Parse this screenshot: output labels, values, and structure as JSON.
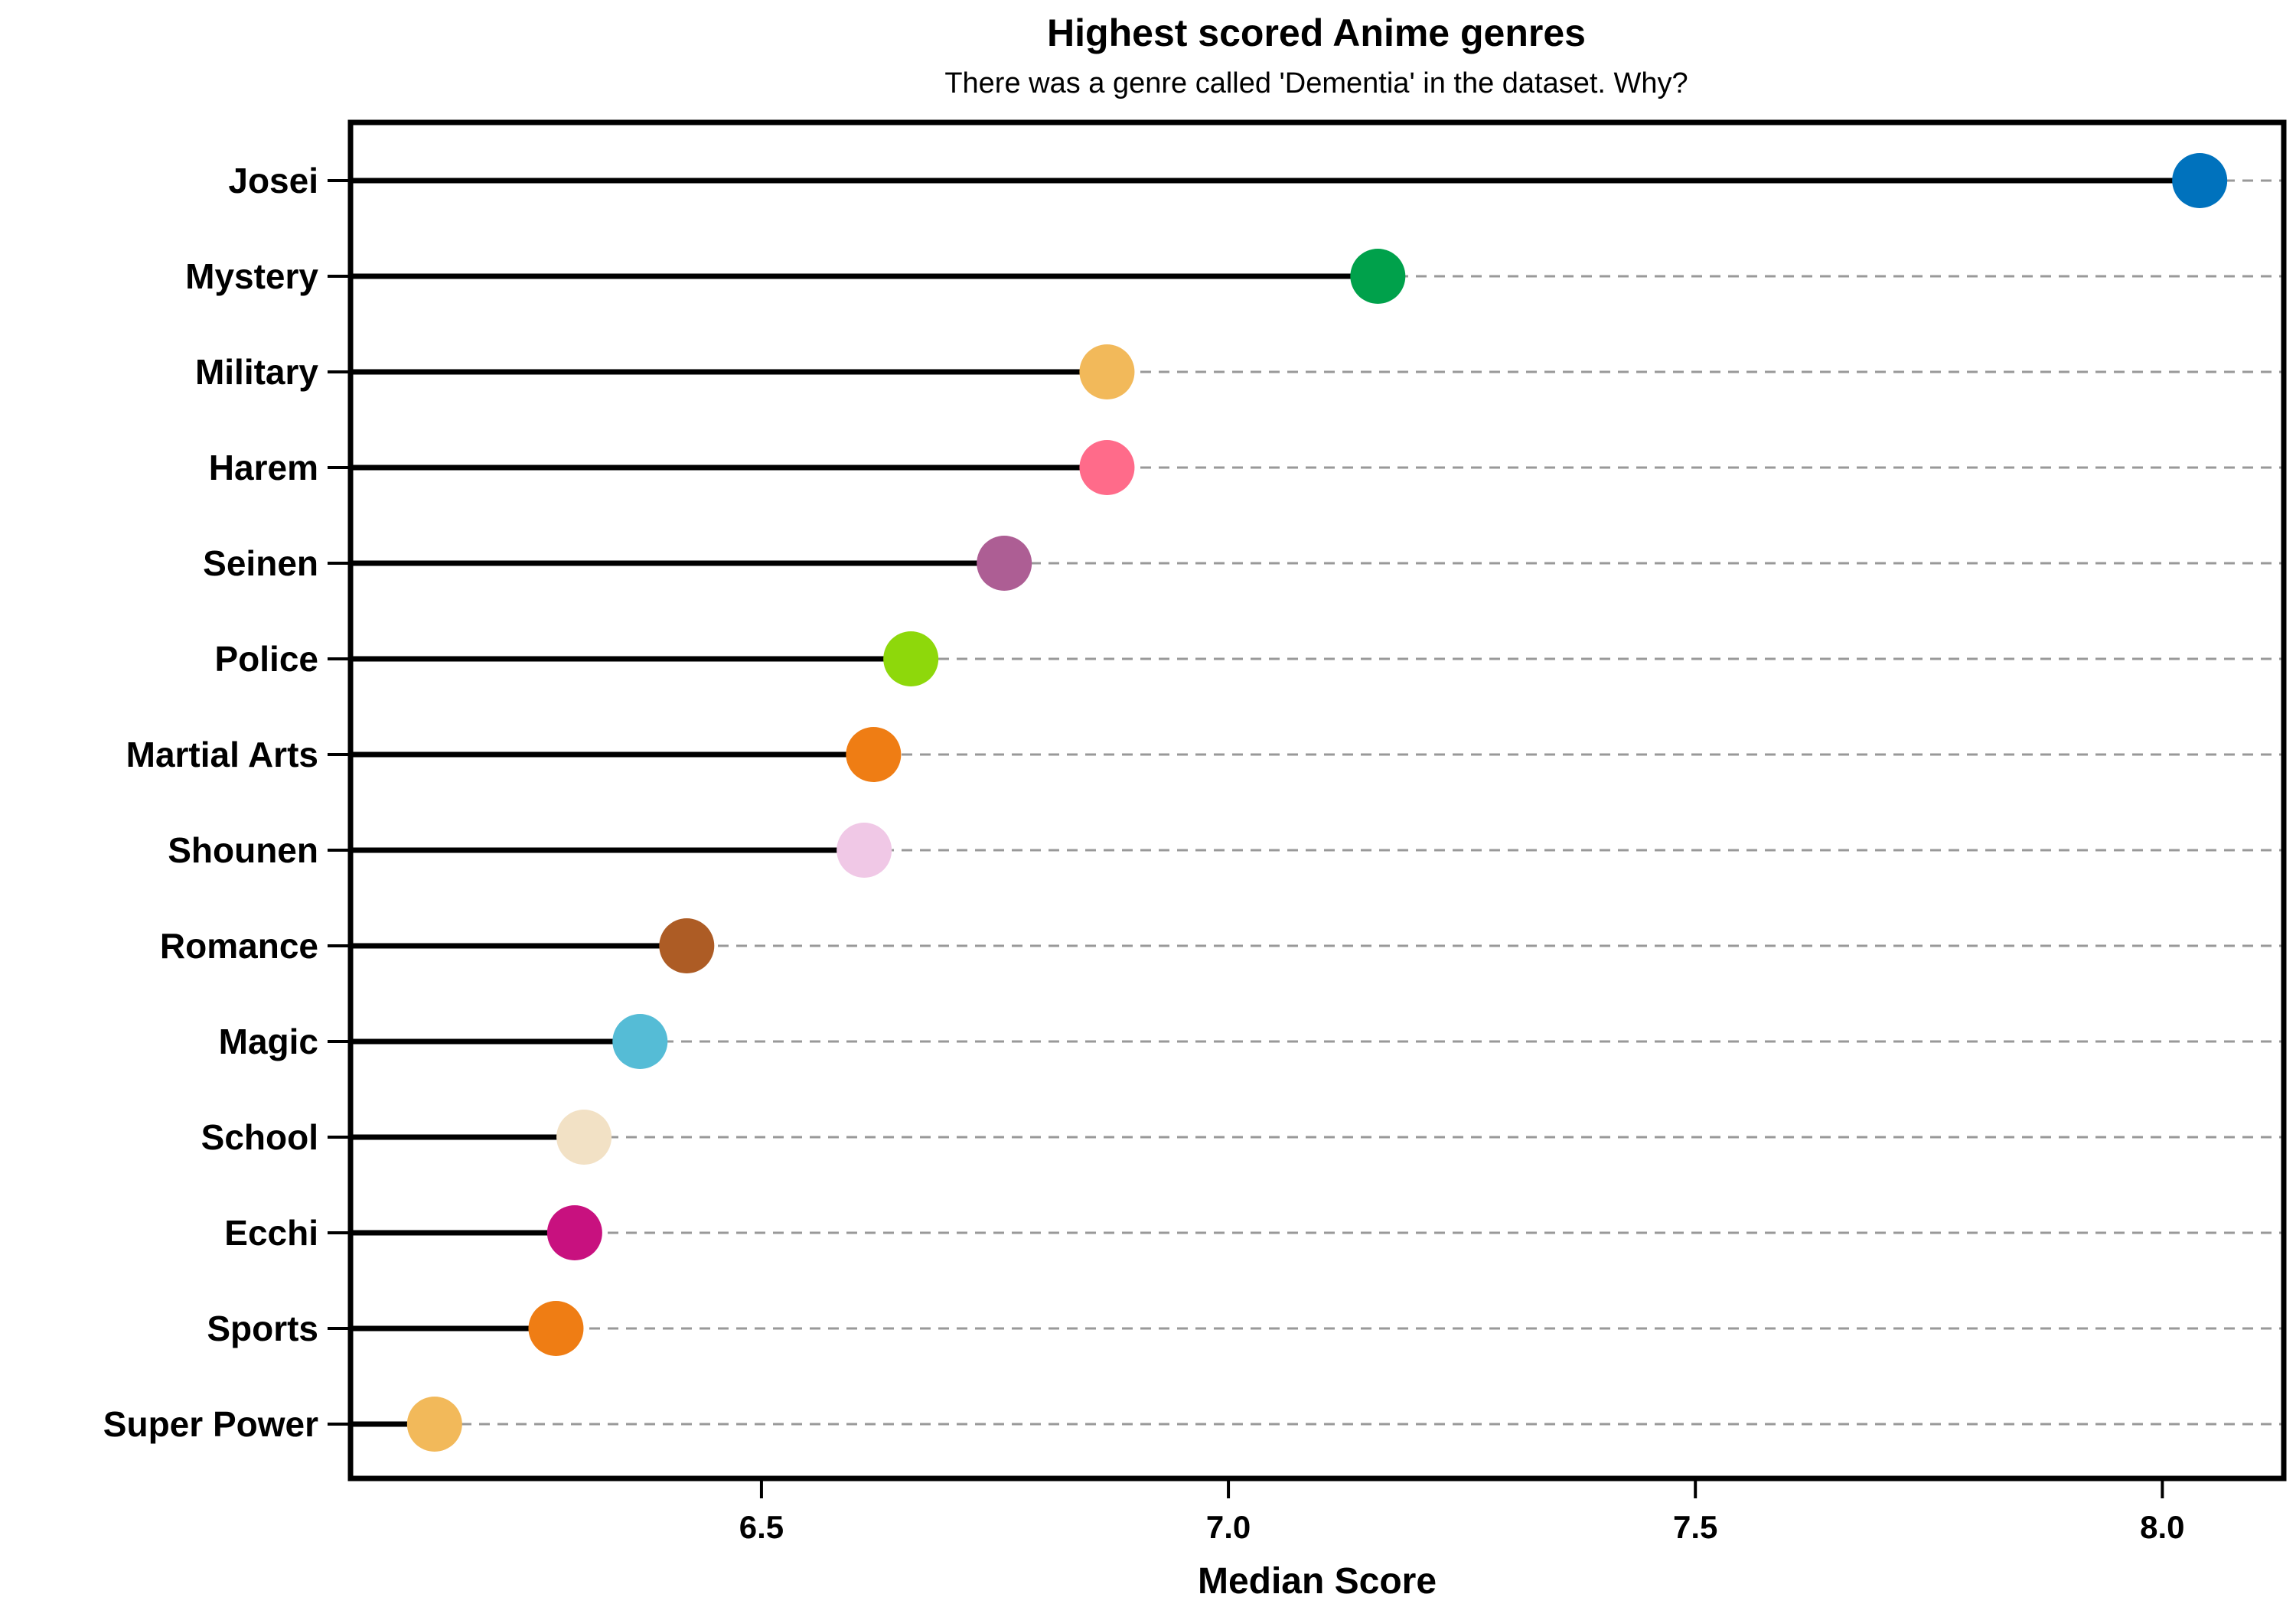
{
  "chart_data": {
    "type": "lollipop",
    "title": "Highest scored Anime genres",
    "subtitle": "There was a genre called 'Dementia' in the dataset. Why?",
    "xlabel": "Median Score",
    "ylabel": "",
    "xlim": [
      6.06,
      8.13
    ],
    "xticks": [
      6.5,
      7.0,
      7.5,
      8.0
    ],
    "xtick_labels": [
      "6.5",
      "7.0",
      "7.5",
      "8.0"
    ],
    "grid": "dashed horizontal guide lines",
    "legend": "none",
    "categories": [
      "Josei",
      "Mystery",
      "Military",
      "Harem",
      "Seinen",
      "Police",
      "Martial Arts",
      "Shounen",
      "Romance",
      "Magic",
      "School",
      "Ecchi",
      "Sports",
      "Super Power"
    ],
    "values": [
      8.04,
      7.16,
      6.87,
      6.87,
      6.76,
      6.66,
      6.62,
      6.61,
      6.42,
      6.37,
      6.31,
      6.3,
      6.28,
      6.15
    ],
    "colors": [
      "#0072bd",
      "#00a14b",
      "#f2b95a",
      "#ff6b8a",
      "#ad5e94",
      "#8ed80b",
      "#ef7d14",
      "#f0c8e6",
      "#ad5c25",
      "#55bcd6",
      "#f2e1c5",
      "#c8117f",
      "#ef7d14",
      "#f2b95a"
    ]
  }
}
